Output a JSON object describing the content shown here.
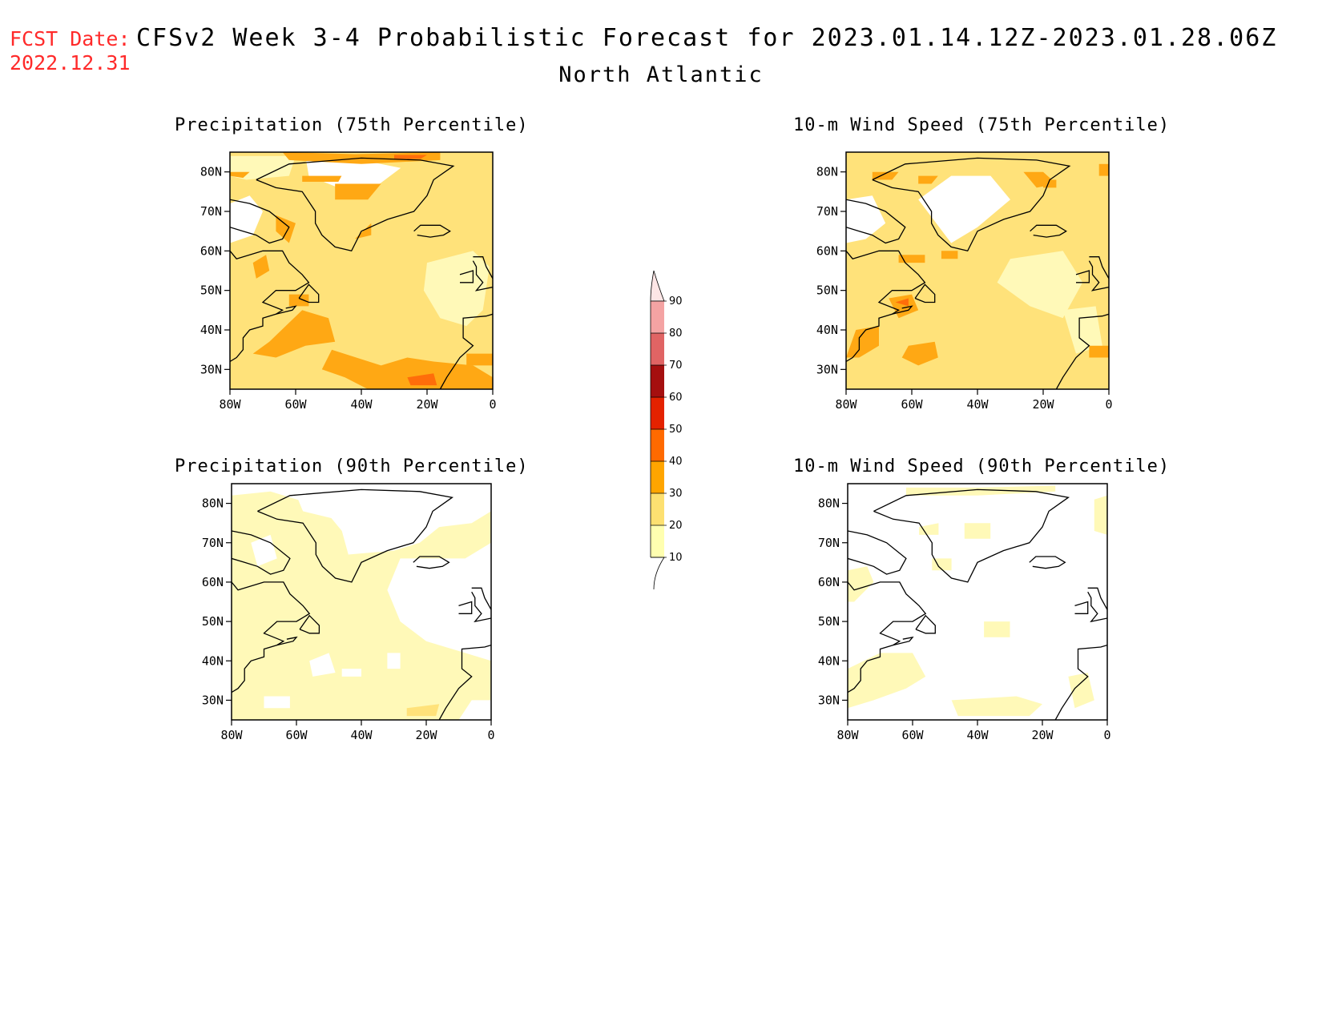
{
  "header": {
    "fcst_label": "FCST Date:",
    "fcst_date": "2022.12.31",
    "title": "CFSv2 Week 3-4 Probabilistic Forecast for 2023.01.14.12Z-2023.01.28.06Z",
    "region": "North Atlantic"
  },
  "axes": {
    "lat_ticks": [
      "80N",
      "70N",
      "60N",
      "50N",
      "40N",
      "30N"
    ],
    "lon_ticks": [
      "80W",
      "60W",
      "40W",
      "20W",
      "0"
    ],
    "lon_range": [
      -80,
      0
    ],
    "lat_range": [
      25,
      85
    ]
  },
  "panels": [
    {
      "title": "Precipitation (75th Percentile)"
    },
    {
      "title": "10-m Wind Speed (75th Percentile)"
    },
    {
      "title": "Precipitation (90th Percentile)"
    },
    {
      "title": "10-m Wind Speed (90th Percentile)"
    }
  ],
  "colorbar": {
    "levels": [
      "90",
      "80",
      "70",
      "60",
      "50",
      "40",
      "30",
      "20",
      "10"
    ],
    "colors": [
      "#fde6e6",
      "#f4a3a3",
      "#e06464",
      "#a50f0f",
      "#e42200",
      "#ff6a00",
      "#ffa500",
      "#fde071",
      "#ffffb0"
    ]
  },
  "map_colors": {
    "white": "#ffffff",
    "c10": "#fff9b8",
    "c20": "#ffe27a",
    "c30": "#ffa814",
    "c40": "#ff6d0a",
    "coast": "#000000"
  }
}
